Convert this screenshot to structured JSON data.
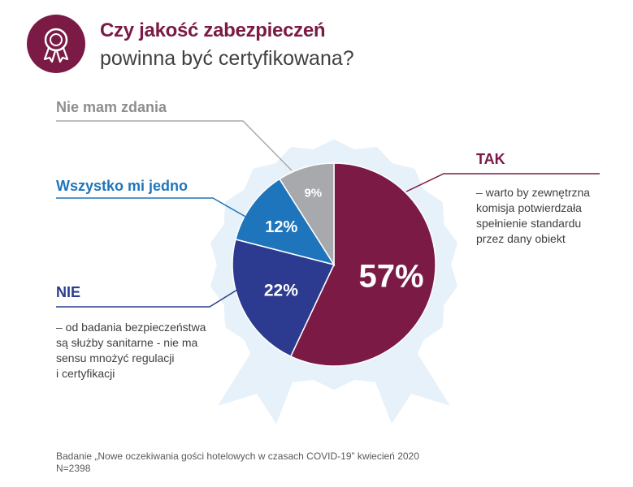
{
  "header": {
    "title_line1": "Czy jakość zabezpieczeń",
    "title_line2": "powinna być certyfikowana?",
    "icon": "award-ribbon-icon"
  },
  "chart_data": {
    "type": "pie",
    "title": "Czy jakość zabezpieczeń powinna być certyfikowana?",
    "categories": [
      "TAK",
      "NIE",
      "Wszystko mi jedno",
      "Nie mam zdania"
    ],
    "values": [
      57,
      22,
      12,
      9
    ],
    "value_labels": [
      "57%",
      "22%",
      "12%",
      "9%"
    ],
    "colors": [
      "#7a1a45",
      "#2c3b8f",
      "#1f75bb",
      "#a7a9ac"
    ],
    "descriptions": {
      "TAK": [
        "– warto by zewnętrzna",
        "komisja potwierdzała",
        "spełnienie standardu",
        "przez dany obiekt"
      ],
      "NIE": [
        "– od badania bezpieczeństwa",
        "są służby sanitarne - nie ma",
        "sensu mnożyć regulacji",
        "i certyfikacji"
      ]
    }
  },
  "labels": {
    "nie_mam_zdania": "Nie mam zdania",
    "wszystko_mi_jedno": "Wszystko mi jedno",
    "nie": "NIE",
    "tak": "TAK"
  },
  "footer": {
    "source_line1": "Badanie „Nowe oczekiwania gości hotelowych w czasach COVID-19” kwiecień 2020",
    "source_line2": "N=2398"
  }
}
